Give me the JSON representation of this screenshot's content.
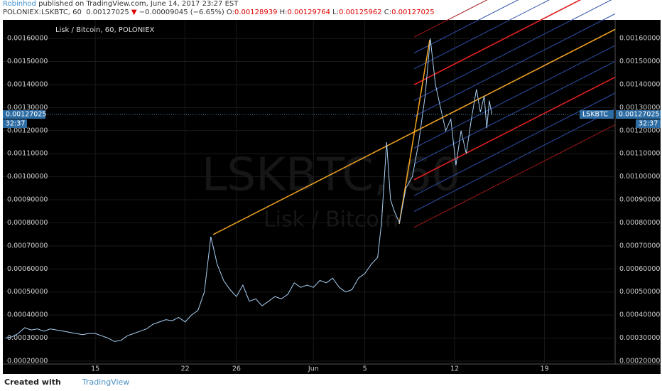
{
  "header": {
    "author": "Robinhod",
    "published": "published on TradingView.com, June 14, 2017 23:27 EST",
    "symbol": "POLONIEX:LSKBTC, 60",
    "price": "0.00127025",
    "arrow": "▼",
    "change": "−0.00009045 (−6.65%)",
    "o_label": "O:",
    "o": "0.00128939",
    "h_label": "H:",
    "h": "0.00129764",
    "l_label": "L:",
    "l": "0.00125962",
    "c_label": "C:",
    "c": "0.00127025"
  },
  "chart_data": {
    "type": "line",
    "title": "Lisk / Bitcoin, 60, POLONIEX",
    "watermark": "LSKBTC, 60",
    "watermark_sub": "Lisk / Bitcoin",
    "color": "#a9d0f5",
    "x": [
      8,
      8.5,
      9,
      9.5,
      10,
      10.5,
      11,
      11.5,
      12,
      12.5,
      13,
      13.5,
      14,
      14.5,
      15,
      15.5,
      16,
      16.5,
      17,
      17.5,
      18,
      18.5,
      19,
      19.5,
      20,
      20.5,
      21,
      21.5,
      22,
      22.5,
      23,
      23.5,
      24,
      24.5,
      25,
      25.5,
      26,
      26.5,
      27,
      27.5,
      28,
      28.5,
      29,
      29.5,
      30,
      30.5,
      31,
      31.5,
      32,
      32.5,
      33,
      33.5,
      34,
      34.5,
      35,
      35.5,
      36,
      36.5,
      37,
      37.3,
      37.7,
      38,
      38.3,
      38.7,
      39.2,
      39.7,
      40.2,
      40.7,
      41.1,
      41.5,
      41.9,
      42.3,
      42.7,
      43.1,
      43.5,
      43.9,
      44.3,
      44.7,
      45,
      45.3,
      45.5,
      45.7,
      45.9
    ],
    "values": [
      0.0003,
      0.000305,
      0.00032,
      0.000345,
      0.000335,
      0.00034,
      0.00033,
      0.00034,
      0.000335,
      0.00033,
      0.000325,
      0.00032,
      0.000315,
      0.00032,
      0.00032,
      0.00031,
      0.0003,
      0.000285,
      0.00029,
      0.00031,
      0.00032,
      0.00033,
      0.00034,
      0.00036,
      0.00037,
      0.00038,
      0.000375,
      0.00039,
      0.00037,
      0.0004,
      0.00042,
      0.0005,
      0.00074,
      0.00062,
      0.00055,
      0.00051,
      0.00048,
      0.00053,
      0.00046,
      0.00047,
      0.00044,
      0.00046,
      0.00048,
      0.00047,
      0.00049,
      0.00054,
      0.00052,
      0.00053,
      0.00052,
      0.00055,
      0.00054,
      0.00056,
      0.00052,
      0.0005,
      0.00051,
      0.00056,
      0.00058,
      0.00062,
      0.00065,
      0.0008,
      0.00115,
      0.0009,
      0.00085,
      0.0008,
      0.00095,
      0.001,
      0.00115,
      0.00135,
      0.0016,
      0.0014,
      0.0013,
      0.0012,
      0.00125,
      0.00105,
      0.0012,
      0.0011,
      0.00125,
      0.00138,
      0.00128,
      0.00135,
      0.00121,
      0.00133,
      0.00127025
    ],
    "last": 0.00127025,
    "last_symbol": "LSKBTC",
    "countdown": "32:37",
    "xlim": [
      7.8,
      55.5
    ],
    "xticks": [
      15,
      22,
      26,
      {
        "value": 32,
        "label": "Jun"
      },
      {
        "value": 36,
        "label": "5"
      },
      {
        "value": 43,
        "label": "12"
      },
      {
        "value": 50,
        "label": "19"
      }
    ],
    "ylim": [
      0.0001876,
      0.0016805
    ],
    "yticks": [
      {
        "value": 0.0002,
        "label": "0.00020000"
      },
      {
        "value": 0.0003,
        "label": "0.00030000"
      },
      {
        "value": 0.0004,
        "label": "0.00040000"
      },
      {
        "value": 0.0005,
        "label": "0.00050000"
      },
      {
        "value": 0.0006,
        "label": "0.00060000"
      },
      {
        "value": 0.0007,
        "label": "0.00070000"
      },
      {
        "value": 0.0008,
        "label": "0.00080000"
      },
      {
        "value": 0.0009,
        "label": "0.00090000"
      },
      {
        "value": 0.001,
        "label": "0.00100000"
      },
      {
        "value": 0.0011,
        "label": "0.00110000"
      },
      {
        "value": 0.0012,
        "label": "0.00120000"
      },
      {
        "value": 0.0013,
        "label": "0.00130000"
      },
      {
        "value": 0.0014,
        "label": "0.00140000"
      },
      {
        "value": 0.0015,
        "label": "0.00150000"
      },
      {
        "value": 0.0016,
        "label": "0.00160000"
      }
    ],
    "grid": true
  },
  "footer": {
    "created": "Created with",
    "brand": "TradingView"
  }
}
